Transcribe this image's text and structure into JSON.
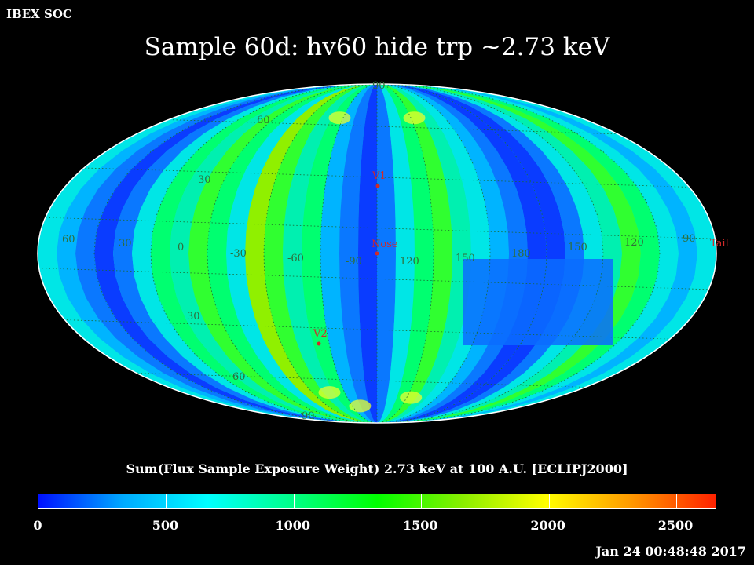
{
  "header": {
    "label": "IBEX SOC"
  },
  "title": "Sample 60d: hv60 hide trp ~2.73 keV",
  "map": {
    "projection": "Mollweide",
    "latitude_labels": [
      {
        "text": "90"
      },
      {
        "text": "60"
      },
      {
        "text": "30"
      },
      {
        "text": "30"
      },
      {
        "text": "60"
      },
      {
        "text": "90"
      }
    ],
    "longitude_labels": [
      "60",
      "30",
      "0",
      "-30",
      "-60",
      "-90",
      "120",
      "150",
      "180",
      "150",
      "120",
      "90"
    ],
    "markers": [
      {
        "name": "V1",
        "label": "V1"
      },
      {
        "name": "Nose",
        "label": "Nose"
      },
      {
        "name": "V2",
        "label": "V2"
      },
      {
        "name": "Tail",
        "label": "Tail"
      }
    ],
    "marker_color": "#d02a2a",
    "grid_label_color": "#2f6e3a"
  },
  "colorbar": {
    "title": "Sum(Flux Sample Exposure Weight)  2.73 keV at 100 A.U. [ECLIPJ2000]",
    "min": 0,
    "max": 2660,
    "tick_labels": [
      "0",
      "500",
      "1000",
      "1500",
      "2000",
      "2500"
    ],
    "tick_values": [
      0,
      500,
      1000,
      1500,
      2000,
      2500
    ],
    "colors": [
      "#0010ff",
      "#00aaff",
      "#00ffff",
      "#00ff88",
      "#00ff00",
      "#88ee00",
      "#ffff00",
      "#ff9900",
      "#ff2200"
    ]
  },
  "timestamp": "Jan 24 00:48:48 2017"
}
